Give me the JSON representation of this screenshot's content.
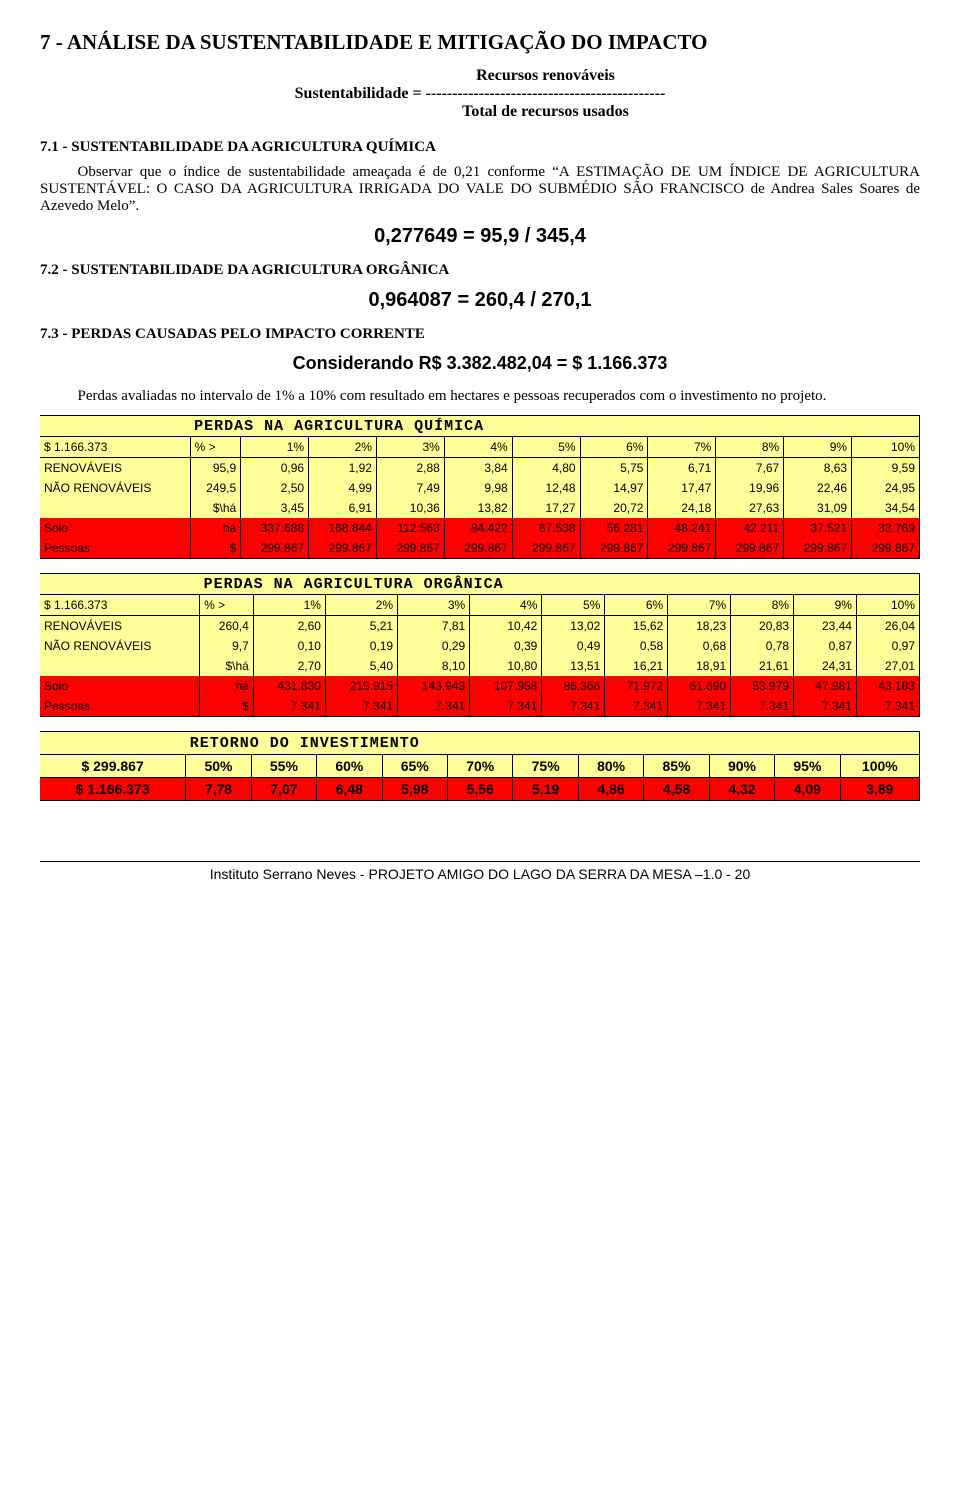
{
  "title": "7 - ANÁLISE DA SUSTENTABILIDADE E MITIGAÇÃO DO IMPACTO",
  "equation": {
    "lhs": "Sustentabilidade  = ",
    "top": "Recursos renováveis",
    "sep": "---------------------------------------------",
    "bottom": "Total de recursos usados"
  },
  "sec71": {
    "head": "7.1 - SUSTENTABILIDADE DA AGRICULTURA QUÍMICA",
    "body": "Observar que o índice de sustentabilidade ameaçada é de 0,21 conforme “A ESTIMAÇÃO DE UM ÍNDICE DE AGRICULTURA SUSTENTÁVEL: O CASO DA AGRICULTURA IRRIGADA DO VALE DO SUBMÉDIO SÃO FRANCISCO de Andrea Sales Soares de Azevedo Melo”.",
    "calc": "0,277649 = 95,9 / 345,4"
  },
  "sec72": {
    "head": "7.2 - SUSTENTABILIDADE DA AGRICULTURA ORGÂNICA",
    "calc": "0,964087 = 260,4 / 270,1"
  },
  "sec73": {
    "head": "7.3 - PERDAS CAUSADAS PELO IMPACTO CORRENTE",
    "calc": "Considerando R$ 3.382.482,04 = $ 1.166.373",
    "body": "Perdas avaliadas no intervalo de 1% a 10% com resultado em hectares e pessoas recuperados com o investimento no projeto."
  },
  "quimica": {
    "title": "PERDAS NA AGRICULTURA QUÍMICA",
    "headerFirst": "$ 1.166.373",
    "headerSecond": "% >",
    "pct": [
      "1%",
      "2%",
      "3%",
      "4%",
      "5%",
      "6%",
      "7%",
      "8%",
      "9%",
      "10%"
    ],
    "rows": [
      {
        "label": "RENOVÁVEIS",
        "v0": "95,9",
        "vals": [
          "0,96",
          "1,92",
          "2,88",
          "3,84",
          "4,80",
          "5,75",
          "6,71",
          "7,67",
          "8,63",
          "9,59"
        ],
        "cls": "ylw"
      },
      {
        "label": "NÃO RENOVÁVEIS",
        "v0": "249,5",
        "vals": [
          "2,50",
          "4,99",
          "7,49",
          "9,98",
          "12,48",
          "14,97",
          "17,47",
          "19,96",
          "22,46",
          "24,95"
        ],
        "cls": "ylw"
      },
      {
        "label": "",
        "v0": "$\\há",
        "vals": [
          "3,45",
          "6,91",
          "10,36",
          "13,82",
          "17,27",
          "20,72",
          "24,18",
          "27,63",
          "31,09",
          "34,54"
        ],
        "cls": "ylw"
      },
      {
        "label": "Solo",
        "v0": "há",
        "vals": [
          "337.688",
          "168.844",
          "112.563",
          "84.422",
          "67.538",
          "56.281",
          "48.241",
          "42.211",
          "37.521",
          "33.769"
        ],
        "cls": "red"
      },
      {
        "label": "Pessoas",
        "v0": "$",
        "vals": [
          "299.867",
          "299.867",
          "299.867",
          "299.867",
          "299.867",
          "299.867",
          "299.867",
          "299.867",
          "299.867",
          "299.867"
        ],
        "cls": "red"
      }
    ]
  },
  "organica": {
    "title": "PERDAS NA AGRICULTURA ORGÂNICA",
    "headerFirst": "$ 1.166.373",
    "headerSecond": "% >",
    "pct": [
      "1%",
      "2%",
      "3%",
      "4%",
      "5%",
      "6%",
      "7%",
      "8%",
      "9%",
      "10%"
    ],
    "rows": [
      {
        "label": "RENOVÁVEIS",
        "v0": "260,4",
        "vals": [
          "2,60",
          "5,21",
          "7,81",
          "10,42",
          "13,02",
          "15,62",
          "18,23",
          "20,83",
          "23,44",
          "26,04"
        ],
        "cls": "ylw"
      },
      {
        "label": "NÃO RENOVÁVEIS",
        "v0": "9,7",
        "vals": [
          "0,10",
          "0,19",
          "0,29",
          "0,39",
          "0,49",
          "0,58",
          "0,68",
          "0,78",
          "0,87",
          "0,97"
        ],
        "cls": "ylw"
      },
      {
        "label": "",
        "v0": "$\\há",
        "vals": [
          "2,70",
          "5,40",
          "8,10",
          "10,80",
          "13,51",
          "16,21",
          "18,91",
          "21,61",
          "24,31",
          "27,01"
        ],
        "cls": "ylw"
      },
      {
        "label": "Solo",
        "v0": "há",
        "vals": [
          "431.830",
          "215.915",
          "143.943",
          "107.958",
          "86.366",
          "71.972",
          "61.690",
          "53.979",
          "47.981",
          "43.183"
        ],
        "cls": "red"
      },
      {
        "label": "Pessoas",
        "v0": "$",
        "vals": [
          "7.341",
          "7.341",
          "7.341",
          "7.341",
          "7.341",
          "7.341",
          "7.341",
          "7.341",
          "7.341",
          "7.341"
        ],
        "cls": "red"
      }
    ]
  },
  "roi": {
    "title": "RETORNO DO INVESTIMENTO",
    "row1first": "$ 299.867",
    "row1": [
      "50%",
      "55%",
      "60%",
      "65%",
      "70%",
      "75%",
      "80%",
      "85%",
      "90%",
      "95%",
      "100%"
    ],
    "row2first": "$ 1.166.373",
    "row2": [
      "7,78",
      "7,07",
      "6,48",
      "5,98",
      "5,56",
      "5,19",
      "4,86",
      "4,58",
      "4,32",
      "4,09",
      "3,89"
    ]
  },
  "footer": "Instituto Serrano Neves  - PROJETO AMIGO DO LAGO DA SERRA DA MESA –1.0 - 20"
}
